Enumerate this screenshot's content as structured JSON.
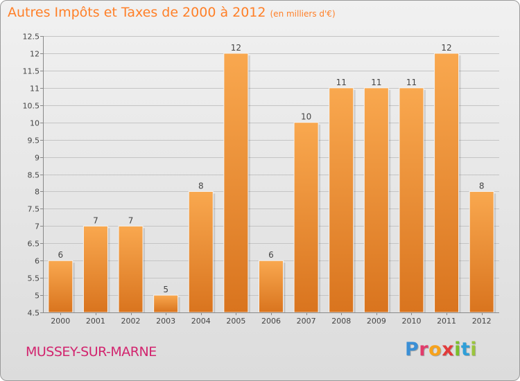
{
  "header": {
    "title": "Autres Impôts et Taxes de 2000 à 2012",
    "subtitle": "(en milliers d'€)"
  },
  "footer": {
    "commune": "MUSSEY-SUR-MARNE",
    "logo_letters": [
      {
        "ch": "P",
        "color": "#3a8fd6"
      },
      {
        "ch": "r",
        "color": "#e23b6b"
      },
      {
        "ch": "o",
        "color": "#f7a21b"
      },
      {
        "ch": "x",
        "color": "#e23b3b"
      },
      {
        "ch": "i",
        "color": "#7bbf2a"
      },
      {
        "ch": "t",
        "color": "#2f9fd8"
      },
      {
        "ch": "i",
        "color": "#9bc53d"
      }
    ]
  },
  "colors": {
    "bar_top": "#f9a84f",
    "bar_bottom": "#d9741e",
    "grid": "#c4c4c4"
  },
  "chart_data": {
    "type": "bar",
    "categories": [
      "2000",
      "2001",
      "2002",
      "2003",
      "2004",
      "2005",
      "2006",
      "2007",
      "2008",
      "2009",
      "2010",
      "2011",
      "2012"
    ],
    "values": [
      6,
      7,
      7,
      5,
      8,
      12,
      6,
      10,
      11,
      11,
      11,
      12,
      8
    ],
    "value_labels": [
      "6",
      "7",
      "7",
      "5",
      "8",
      "12",
      "6",
      "10",
      "11",
      "11",
      "11",
      "12",
      "8"
    ],
    "ylim": [
      4.5,
      12.5
    ],
    "yticks": [
      4.5,
      5,
      5.5,
      6,
      6.5,
      7,
      7.5,
      8,
      8.5,
      9,
      9.5,
      10,
      10.5,
      11,
      11.5,
      12,
      12.5
    ],
    "ytick_labels": [
      "4.5",
      "5",
      "5.5",
      "6",
      "6.5",
      "7",
      "7.5",
      "8",
      "8.5",
      "9",
      "9.5",
      "10",
      "10.5",
      "11",
      "11.5",
      "12",
      "12.5"
    ],
    "grid": true,
    "grid_axis": "y",
    "legend": "none"
  }
}
